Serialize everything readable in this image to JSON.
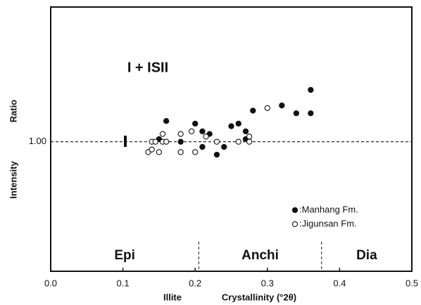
{
  "chart_data": {
    "type": "scatter",
    "annotation": "I + ISII",
    "xlabel": [
      "Illite",
      "Crystallinity (°2θ)"
    ],
    "ylabel": [
      "Intensity",
      "Ratio"
    ],
    "xlim": [
      0,
      0.5
    ],
    "xticks": [
      {
        "value": 0,
        "label": "0.0"
      },
      0.1,
      0.2,
      0.3,
      0.4,
      0.5
    ],
    "ylim": [
      0.5,
      1.52
    ],
    "yticks": [
      {
        "value": 1,
        "label": "1.00"
      }
    ],
    "zone_boundaries": [
      0.205,
      0.375
    ],
    "zones": [
      "Epi",
      "Anchi",
      "Dia"
    ],
    "series": [
      {
        "name": ":Manhang Fm.",
        "color": "#111111",
        "filled": true,
        "x": [
          0.15,
          0.16,
          0.18,
          0.2,
          0.21,
          0.22,
          0.21,
          0.23,
          0.24,
          0.25,
          0.26,
          0.27,
          0.27,
          0.28,
          0.32,
          0.34,
          0.36,
          0.36
        ],
        "values": [
          1.01,
          1.08,
          1.0,
          1.07,
          1.04,
          1.03,
          0.98,
          0.95,
          0.98,
          1.06,
          1.07,
          1.04,
          1.01,
          1.12,
          1.14,
          1.11,
          1.11,
          1.2
        ]
      },
      {
        "name": ":Jigunsan Fm.",
        "color": "#111111",
        "filled": false,
        "x": [
          0.135,
          0.14,
          0.14,
          0.145,
          0.15,
          0.155,
          0.155,
          0.16,
          0.18,
          0.18,
          0.195,
          0.2,
          0.215,
          0.23,
          0.26,
          0.275,
          0.275,
          0.3
        ],
        "values": [
          0.96,
          0.97,
          1.0,
          1.0,
          0.96,
          1.0,
          1.03,
          1.0,
          1.03,
          0.96,
          1.04,
          0.96,
          1.02,
          1.0,
          1.0,
          1.02,
          1.0,
          1.13
        ]
      }
    ]
  }
}
